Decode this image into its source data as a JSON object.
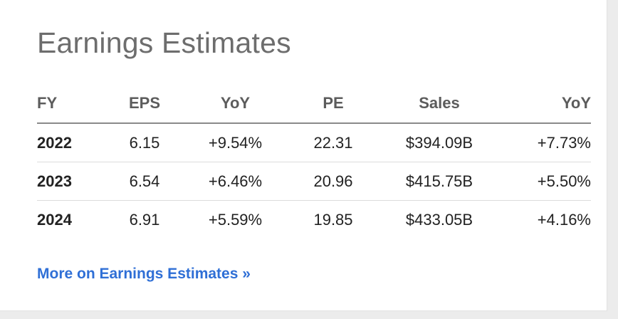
{
  "widget": {
    "title": "Earnings Estimates",
    "more_link": "More on Earnings Estimates »"
  },
  "table": {
    "headers": {
      "fy": "FY",
      "eps": "EPS",
      "yoy_eps": "YoY",
      "pe": "PE",
      "sales": "Sales",
      "yoy_sales": "YoY"
    },
    "rows": [
      {
        "fy": "2022",
        "eps": "6.15",
        "yoy_eps": "+9.54%",
        "pe": "22.31",
        "sales": "$394.09B",
        "yoy_sales": "+7.73%"
      },
      {
        "fy": "2023",
        "eps": "6.54",
        "yoy_eps": "+6.46%",
        "pe": "20.96",
        "sales": "$415.75B",
        "yoy_sales": "+5.50%"
      },
      {
        "fy": "2024",
        "eps": "6.91",
        "yoy_eps": "+5.59%",
        "pe": "19.85",
        "sales": "$433.05B",
        "yoy_sales": "+4.16%"
      }
    ]
  },
  "colors": {
    "positive": "#2e8b3e",
    "link": "#2f6fd6",
    "title": "#6d6d6d"
  }
}
